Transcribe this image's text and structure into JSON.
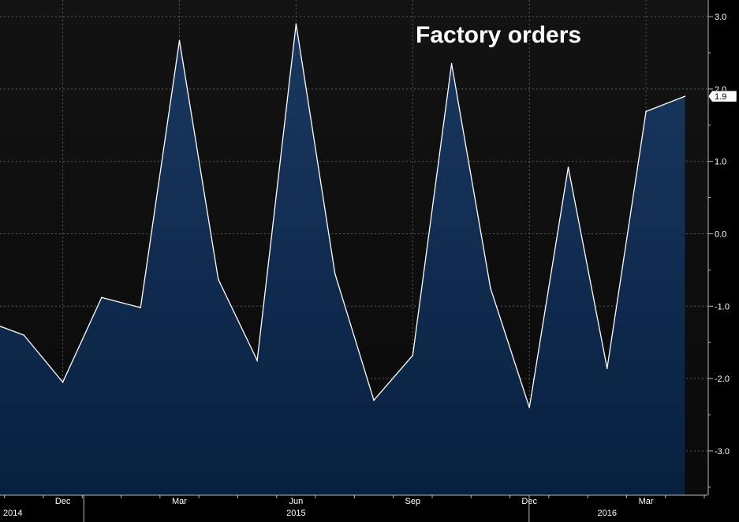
{
  "chart_data": {
    "type": "area",
    "title": "Factory orders",
    "xlabel": "",
    "ylabel": "",
    "ylim": [
      -3.5,
      3.1
    ],
    "yticks": [
      3.0,
      2.0,
      1.0,
      0.0,
      -1.0,
      -2.0,
      -3.0
    ],
    "ytick_labels": [
      "3.0",
      "2.0",
      "1.0",
      "0.0",
      "-1.0",
      "-2.0",
      "-3.0"
    ],
    "x": [
      "2014-10",
      "2014-11",
      "2014-12",
      "2015-01",
      "2015-02",
      "2015-03",
      "2015-04",
      "2015-05",
      "2015-06",
      "2015-07",
      "2015-08",
      "2015-09",
      "2015-10",
      "2015-11",
      "2015-12",
      "2016-01",
      "2016-02",
      "2016-03",
      "2016-04"
    ],
    "values": [
      -1.2,
      -1.4,
      -2.05,
      -0.88,
      -1.02,
      2.67,
      -0.63,
      -1.75,
      2.9,
      -0.55,
      -2.3,
      -1.68,
      2.35,
      -0.75,
      -2.4,
      0.92,
      -1.86,
      1.69,
      1.9
    ],
    "month_labels": [
      {
        "x": "2014-12",
        "text": "Dec"
      },
      {
        "x": "2015-03",
        "text": "Mar"
      },
      {
        "x": "2015-06",
        "text": "Jun"
      },
      {
        "x": "2015-09",
        "text": "Sep"
      },
      {
        "x": "2015-12",
        "text": "Dec"
      },
      {
        "x": "2016-03",
        "text": "Mar"
      }
    ],
    "year_labels": [
      {
        "x": "2014-10",
        "text": "2014"
      },
      {
        "x": "2015-06",
        "text": "2015"
      },
      {
        "x": "2016-02",
        "text": "2016"
      }
    ],
    "last_value_label": "1.9",
    "grid": true,
    "colors": {
      "background_top": "#131313",
      "background_bottom": "#0a0a0a",
      "fill_top": "#1a3860",
      "fill_bottom": "#082040",
      "line": "#ffffff",
      "grid": "#5a5a5a",
      "text": "#ffffff"
    }
  }
}
